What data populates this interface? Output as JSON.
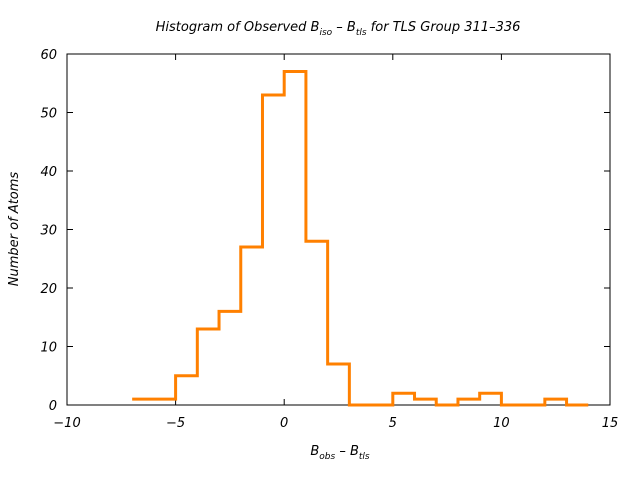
{
  "chart_data": {
    "type": "histogram",
    "title": {
      "prefix": "Histogram of Observed B",
      "sub1": "iso",
      "mid": " – B",
      "sub2": "tls",
      "suffix": " for TLS Group 311–336"
    },
    "xlabel": {
      "main1": "B",
      "sub1": "obs",
      "mid": " – B",
      "sub2": "tls"
    },
    "ylabel": "Number of Atoms",
    "xlim": [
      -10,
      15
    ],
    "ylim": [
      0,
      60
    ],
    "xticks": [
      -10,
      -5,
      0,
      5,
      10,
      15
    ],
    "xtick_labels": [
      "−10",
      "−5",
      "0",
      "5",
      "10",
      "15"
    ],
    "yticks": [
      0,
      10,
      20,
      30,
      40,
      50,
      60
    ],
    "ytick_labels": [
      "0",
      "10",
      "20",
      "30",
      "40",
      "50",
      "60"
    ],
    "bin_edges": [
      -7,
      -5,
      -4,
      -3,
      -2,
      -1,
      0,
      1,
      2,
      3,
      4,
      5,
      6,
      7,
      8,
      9,
      10,
      11,
      12,
      13,
      14
    ],
    "counts": [
      1,
      5,
      13,
      16,
      27,
      53,
      57,
      28,
      7,
      0,
      0,
      2,
      1,
      0,
      1,
      2,
      0,
      0,
      1,
      0
    ],
    "line_color": "#ff8000",
    "grid": false
  }
}
